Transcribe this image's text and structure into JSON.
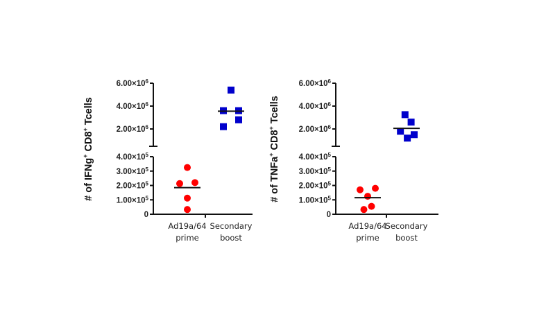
{
  "chart_data": [
    {
      "type": "scatter",
      "subtype": "dot-plot-with-median-split-axis",
      "ylabel_parts": [
        "# of IFNg",
        "+",
        " CD8",
        "+",
        " Tcells"
      ],
      "ylabel": "# of IFNg+ CD8+ Tcells",
      "categories": [
        "Ad19a/64\nprime",
        "Secondary\nboost"
      ],
      "category_lines": [
        [
          "Ad19a/64",
          "prime"
        ],
        [
          "Secondary",
          "boost"
        ]
      ],
      "y_upper": {
        "range": [
          500000,
          6000000
        ],
        "ticks": [
          {
            "value": 6000000,
            "mant": "6.00×10",
            "exp": "6"
          },
          {
            "value": 4000000,
            "mant": "4.00×10",
            "exp": "6"
          },
          {
            "value": 2000000,
            "mant": "2.00×10",
            "exp": "6"
          }
        ]
      },
      "y_lower": {
        "range": [
          0,
          400000
        ],
        "ticks": [
          {
            "value": 400000,
            "mant": "4.00×10",
            "exp": "5"
          },
          {
            "value": 300000,
            "mant": "3.00×10",
            "exp": "5"
          },
          {
            "value": 200000,
            "mant": "2.00×10",
            "exp": "5"
          },
          {
            "value": 100000,
            "mant": "1.00×10",
            "exp": "5"
          },
          {
            "value": 0,
            "mant": "0",
            "exp": ""
          }
        ]
      },
      "series": [
        {
          "name": "Ad19a/64 prime",
          "marker": "circle",
          "color": "#ff0000",
          "axis": "lower",
          "points": [
            {
              "jitter": 0,
              "value": 325000
            },
            {
              "jitter": -1,
              "value": 213000
            },
            {
              "jitter": 1,
              "value": 220000
            },
            {
              "jitter": 0,
              "value": 112000
            },
            {
              "jitter": 0,
              "value": 33000
            }
          ],
          "median": 185000
        },
        {
          "name": "Secondary boost",
          "marker": "square",
          "color": "#0000cc",
          "axis": "upper",
          "points": [
            {
              "jitter": 0,
              "value": 5400000
            },
            {
              "jitter": -1,
              "value": 3600000
            },
            {
              "jitter": 1,
              "value": 3600000
            },
            {
              "jitter": 1,
              "value": 2800000
            },
            {
              "jitter": -1,
              "value": 2200000
            }
          ],
          "median": 3550000
        }
      ]
    },
    {
      "type": "scatter",
      "subtype": "dot-plot-with-median-split-axis",
      "ylabel_parts": [
        "# of TNFa",
        "+",
        " CD8",
        "+",
        " Tcells"
      ],
      "ylabel": "# of TNFa+ CD8+ Tcells",
      "categories": [
        "Ad19a/64\nprime",
        "Secondary\nboost"
      ],
      "category_lines": [
        [
          "Ad19a/64",
          "prime"
        ],
        [
          "Secondary",
          "boost"
        ]
      ],
      "y_upper": {
        "range": [
          500000,
          6000000
        ],
        "ticks": [
          {
            "value": 6000000,
            "mant": "6.00×10",
            "exp": "6"
          },
          {
            "value": 4000000,
            "mant": "4.00×10",
            "exp": "6"
          },
          {
            "value": 2000000,
            "mant": "2.00×10",
            "exp": "6"
          }
        ]
      },
      "y_lower": {
        "range": [
          0,
          400000
        ],
        "ticks": [
          {
            "value": 400000,
            "mant": "4.00×10",
            "exp": "5"
          },
          {
            "value": 300000,
            "mant": "3.00×10",
            "exp": "5"
          },
          {
            "value": 200000,
            "mant": "2.00×10",
            "exp": "5"
          },
          {
            "value": 100000,
            "mant": "1.00×10",
            "exp": "5"
          },
          {
            "value": 0,
            "mant": "0",
            "exp": ""
          }
        ]
      },
      "series": [
        {
          "name": "Ad19a/64 prime",
          "marker": "circle",
          "color": "#ff0000",
          "axis": "lower",
          "points": [
            {
              "jitter": -1,
              "value": 170000
            },
            {
              "jitter": 1,
              "value": 180000
            },
            {
              "jitter": 0,
              "value": 125000
            },
            {
              "jitter": 0.5,
              "value": 55000
            },
            {
              "jitter": -0.5,
              "value": 33000
            }
          ],
          "median": 115000
        },
        {
          "name": "Secondary boost",
          "marker": "square",
          "color": "#0000cc",
          "axis": "upper",
          "points": [
            {
              "jitter": -0.2,
              "value": 3250000
            },
            {
              "jitter": 0.6,
              "value": 2600000
            },
            {
              "jitter": -0.8,
              "value": 1800000
            },
            {
              "jitter": 1,
              "value": 1500000
            },
            {
              "jitter": 0.1,
              "value": 1200000
            }
          ],
          "median": 2050000
        }
      ]
    }
  ]
}
